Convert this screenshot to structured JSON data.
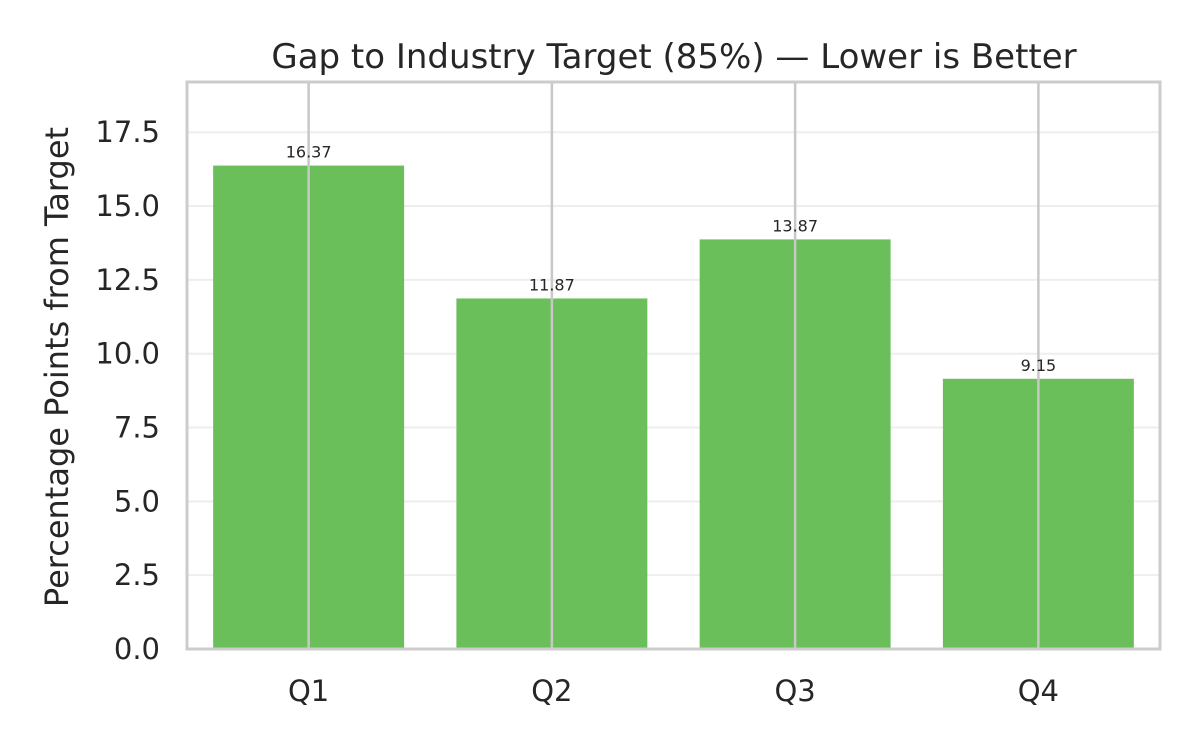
{
  "chart_data": {
    "type": "bar",
    "title": "Gap to Industry Target (85%) — Lower is Better",
    "xlabel": "",
    "ylabel": "Percentage Points from Target",
    "categories": [
      "Q1",
      "Q2",
      "Q3",
      "Q4"
    ],
    "values": [
      16.37,
      11.87,
      13.87,
      9.15
    ],
    "data_labels": [
      "16.37",
      "11.87",
      "13.87",
      "9.15"
    ],
    "ylim": [
      0,
      19.2
    ],
    "yticks": [
      0.0,
      2.5,
      5.0,
      7.5,
      10.0,
      12.5,
      15.0,
      17.5
    ],
    "ytick_labels": [
      "0.0",
      "2.5",
      "5.0",
      "7.5",
      "10.0",
      "12.5",
      "15.0",
      "17.5"
    ],
    "grid": true,
    "legend": "none",
    "colors": {
      "bar": "#6abf5a",
      "grid": "#eeeeee",
      "error_line": "#c8c8c8",
      "frame": "#cccccc"
    }
  }
}
